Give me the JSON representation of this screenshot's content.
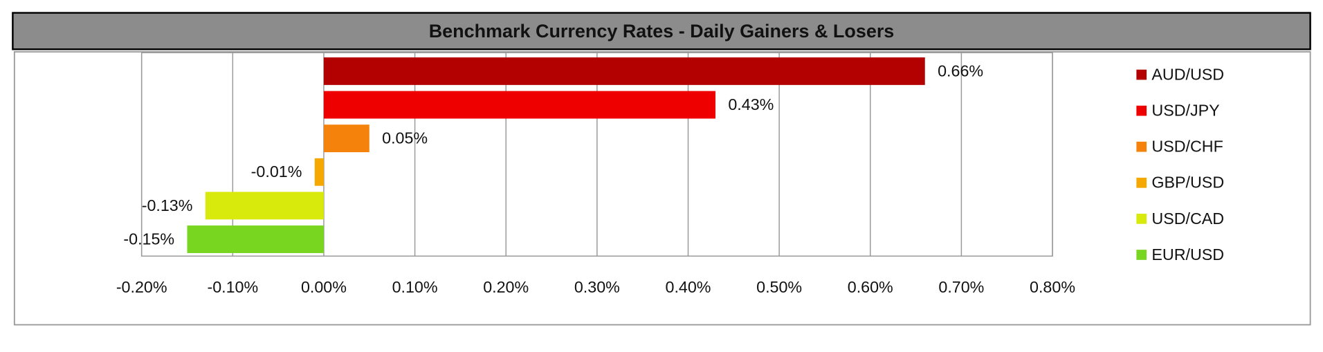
{
  "chart_data": {
    "type": "bar",
    "orientation": "horizontal",
    "title": "Benchmark Currency Rates - Daily Gainers & Losers",
    "xlim": [
      -0.2,
      0.8
    ],
    "xticks": [
      {
        "value": -0.2,
        "label": "-0.20%"
      },
      {
        "value": -0.1,
        "label": "-0.10%"
      },
      {
        "value": 0,
        "label": "0.00%"
      },
      {
        "value": 0.1,
        "label": "0.10%"
      },
      {
        "value": 0.2,
        "label": "0.20%"
      },
      {
        "value": 0.3,
        "label": "0.30%"
      },
      {
        "value": 0.4,
        "label": "0.40%"
      },
      {
        "value": 0.5,
        "label": "0.50%"
      },
      {
        "value": 0.6,
        "label": "0.60%"
      },
      {
        "value": 0.7,
        "label": "0.70%"
      },
      {
        "value": 0.8,
        "label": "0.80%"
      }
    ],
    "grid": true,
    "legend": "right",
    "series": [
      {
        "name": "AUD/USD",
        "color": "#b30000",
        "values": [
          0.66
        ],
        "value_labels": [
          "0.66%"
        ]
      },
      {
        "name": "USD/JPY",
        "color": "#ee0000",
        "values": [
          0.43
        ],
        "value_labels": [
          "0.43%"
        ]
      },
      {
        "name": "USD/CHF",
        "color": "#f5820a",
        "values": [
          0.05
        ],
        "value_labels": [
          "0.05%"
        ]
      },
      {
        "name": "GBP/USD",
        "color": "#f5a800",
        "values": [
          -0.01
        ],
        "value_labels": [
          "-0.01%"
        ]
      },
      {
        "name": "USD/CAD",
        "color": "#d8ea0c",
        "values": [
          -0.13
        ],
        "value_labels": [
          "-0.13%"
        ]
      },
      {
        "name": "EUR/USD",
        "color": "#78d620",
        "values": [
          -0.15
        ],
        "value_labels": [
          "-0.15%"
        ]
      }
    ]
  }
}
